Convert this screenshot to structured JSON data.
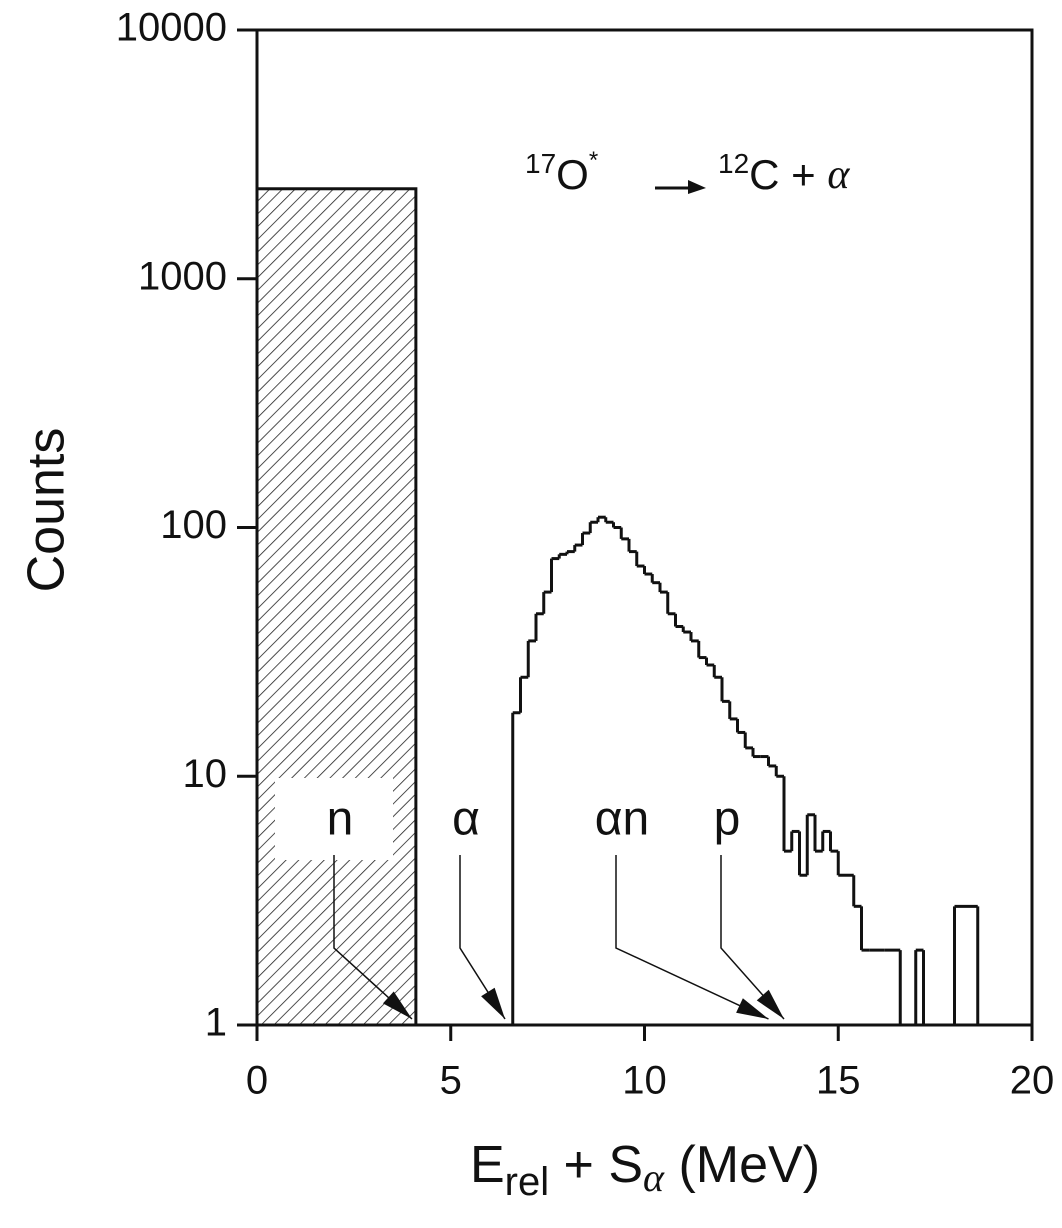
{
  "chart_data": {
    "type": "histogram",
    "ylabel": "Counts",
    "xlabel": {
      "main": "E",
      "sub": "rel",
      "mid": " + S",
      "sub2": "α",
      "unit": " (MeV)"
    },
    "reaction": {
      "a_mass": "17",
      "a": "O",
      "a_star": "*",
      "b_mass": "12",
      "b": "C + ",
      "c": "α"
    },
    "xlim": [
      0,
      20
    ],
    "xticks": [
      0,
      5,
      10,
      15,
      20
    ],
    "ylim": [
      1,
      10000
    ],
    "yticks": [
      1,
      10,
      100,
      1000,
      10000
    ],
    "log_y": true,
    "hatched": {
      "bins": [
        0,
        4.1
      ],
      "counts": [
        2300
      ]
    },
    "bins": [
      6.6,
      6.8,
      7.0,
      7.2,
      7.4,
      7.6,
      7.8,
      8.0,
      8.2,
      8.4,
      8.6,
      8.8,
      9.0,
      9.2,
      9.4,
      9.6,
      9.8,
      10.0,
      10.2,
      10.4,
      10.6,
      10.8,
      11.0,
      11.2,
      11.4,
      11.6,
      11.8,
      12.0,
      12.2,
      12.4,
      12.6,
      12.8,
      13.0,
      13.2,
      13.4,
      13.6,
      13.8,
      14.0,
      14.2,
      14.4,
      14.6,
      14.8,
      15.0,
      15.2,
      15.4,
      15.6,
      15.8,
      16.0,
      16.2,
      16.4,
      16.6,
      16.8,
      17.0,
      17.2,
      18.0,
      18.6
    ],
    "counts": [
      18,
      25,
      35,
      45,
      55,
      75,
      78,
      80,
      85,
      95,
      105,
      110,
      105,
      100,
      90,
      80,
      70,
      65,
      60,
      55,
      45,
      40,
      38,
      35,
      30,
      28,
      25,
      20,
      17,
      15,
      13,
      12,
      12,
      11,
      10,
      5,
      6,
      4,
      7,
      5,
      6,
      5,
      4,
      4,
      3,
      2,
      2,
      2,
      2,
      2,
      1,
      1,
      2,
      1,
      3
    ],
    "markers": [
      {
        "label": "n",
        "x": 4.0
      },
      {
        "label": "α",
        "x": 6.4
      },
      {
        "label": "αn",
        "x": 13.2
      },
      {
        "label": "p",
        "x": 13.6
      }
    ]
  }
}
